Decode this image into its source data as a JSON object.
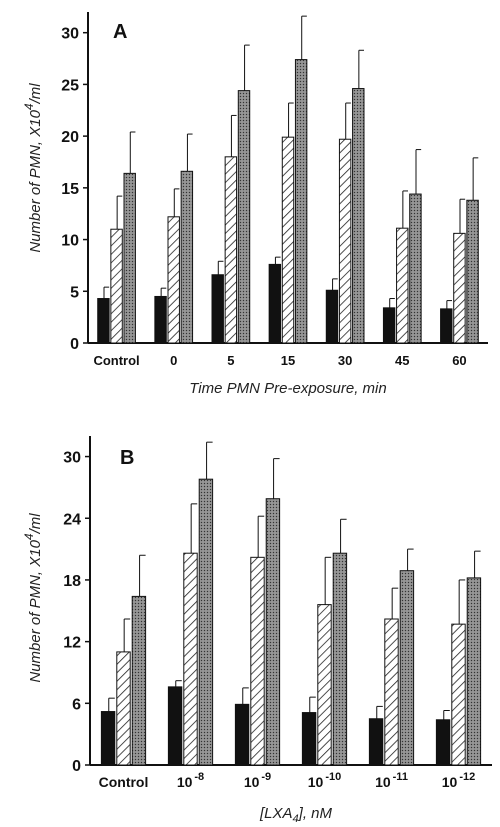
{
  "chart_data": [
    {
      "panel": "A",
      "type": "bar",
      "categories": [
        "Control",
        "0",
        "5",
        "15",
        "30",
        "45",
        "60"
      ],
      "ylim": [
        0,
        32
      ],
      "yticks": [
        0,
        5,
        10,
        15,
        20,
        25,
        30
      ],
      "xlabel": "Time PMN Pre-exposure, min",
      "ylabel": {
        "main": "Number of PMN, X10",
        "sup": "4",
        "unit": "/ml"
      },
      "grid": false,
      "legend": "none",
      "series": [
        {
          "fill": "#111111",
          "pattern": "solid",
          "values": [
            4.3,
            4.5,
            6.6,
            7.6,
            5.1,
            3.4,
            3.3
          ],
          "errors": [
            1.1,
            0.8,
            1.3,
            0.7,
            1.1,
            0.9,
            0.8
          ]
        },
        {
          "fill": "#ffffff",
          "pattern": "hatch",
          "values": [
            11.0,
            12.2,
            18.0,
            19.9,
            19.7,
            11.1,
            10.6
          ],
          "errors": [
            3.2,
            2.7,
            4.0,
            3.3,
            3.5,
            3.6,
            3.3
          ]
        },
        {
          "fill": "#888888",
          "pattern": "stipple",
          "values": [
            16.4,
            16.6,
            24.4,
            27.4,
            24.6,
            14.4,
            13.8
          ],
          "errors": [
            4.0,
            3.6,
            4.4,
            4.2,
            3.7,
            4.3,
            4.1
          ]
        }
      ]
    },
    {
      "panel": "B",
      "type": "bar",
      "categories": [
        {
          "base": "Control",
          "exp": ""
        },
        {
          "base": "10",
          "exp": "-8"
        },
        {
          "base": "10",
          "exp": "-9"
        },
        {
          "base": "10",
          "exp": "-10"
        },
        {
          "base": "10",
          "exp": "-11"
        },
        {
          "base": "10",
          "exp": "-12"
        }
      ],
      "ylim": [
        0,
        32
      ],
      "yticks": [
        0,
        6,
        12,
        18,
        24,
        30
      ],
      "xlabel": {
        "main": "[LXA",
        "sub": "4",
        "tail": "], nM"
      },
      "ylabel": {
        "main": "Number of PMN, X10",
        "sup": "4",
        "unit": "/ml"
      },
      "grid": false,
      "legend": "none",
      "series": [
        {
          "fill": "#111111",
          "pattern": "solid",
          "values": [
            5.2,
            7.6,
            5.9,
            5.1,
            4.5,
            4.4
          ],
          "errors": [
            1.3,
            0.6,
            1.6,
            1.5,
            1.2,
            0.9
          ]
        },
        {
          "fill": "#ffffff",
          "pattern": "hatch",
          "values": [
            11.0,
            20.6,
            20.2,
            15.6,
            14.2,
            13.7
          ],
          "errors": [
            3.2,
            4.8,
            4.0,
            4.6,
            3.0,
            4.3
          ]
        },
        {
          "fill": "#888888",
          "pattern": "stipple",
          "values": [
            16.4,
            27.8,
            25.9,
            20.6,
            18.9,
            18.2
          ],
          "errors": [
            4.0,
            3.6,
            3.9,
            3.3,
            2.1,
            2.6
          ]
        }
      ]
    }
  ]
}
